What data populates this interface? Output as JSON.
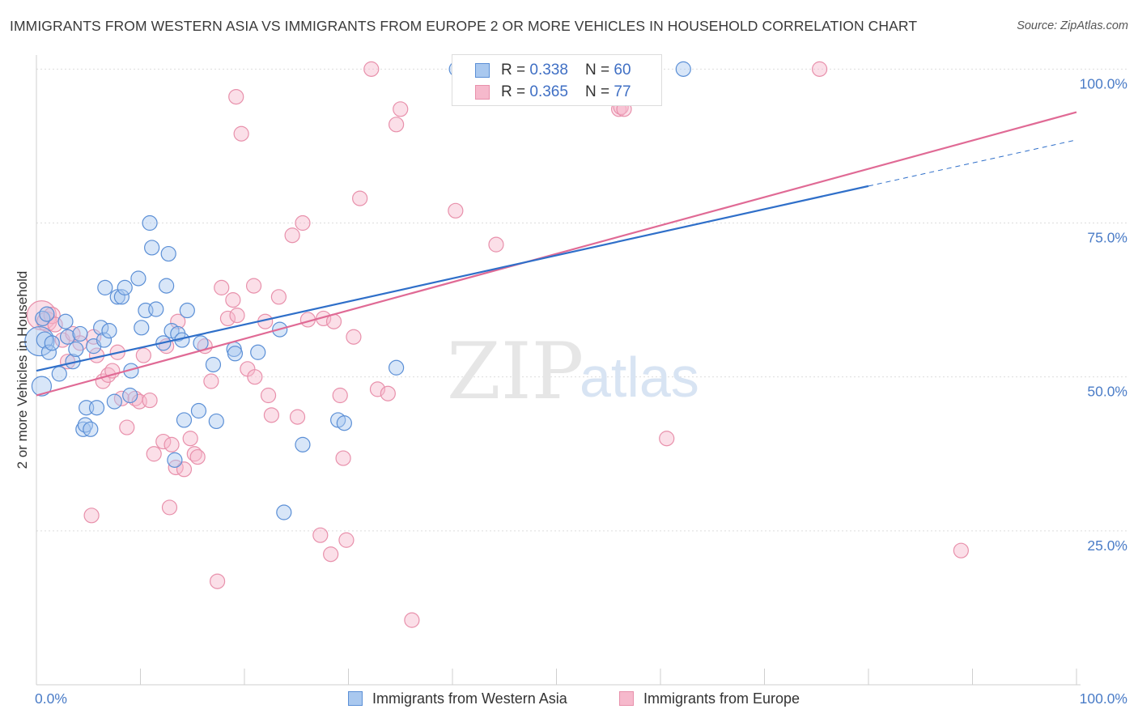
{
  "title": "IMMIGRANTS FROM WESTERN ASIA VS IMMIGRANTS FROM EUROPE 2 OR MORE VEHICLES IN HOUSEHOLD CORRELATION CHART",
  "source": "Source: ZipAtlas.com",
  "watermark": {
    "zip": "ZIP",
    "atlas": "atlas"
  },
  "colors": {
    "blue_fill": "#a9c8ef",
    "blue_stroke": "#5b8fd6",
    "blue_line": "#2f6fc9",
    "pink_fill": "#f6b9cc",
    "pink_stroke": "#e890ab",
    "pink_line": "#e06a95",
    "grid": "#dddddd",
    "tick_label": "#4a7cc7"
  },
  "legend": {
    "series": [
      {
        "r_label": "R = ",
        "r_value": "0.338",
        "n_label": "N = ",
        "n_value": "60"
      },
      {
        "r_label": "R = ",
        "r_value": "0.365",
        "n_label": "N = ",
        "n_value": "77"
      }
    ]
  },
  "chart_data": {
    "type": "scatter",
    "ylabel": "2 or more Vehicles in Household",
    "xlim": [
      0,
      100
    ],
    "ylim": [
      0,
      100
    ],
    "x_tick_labels": [
      "0.0%",
      "100.0%"
    ],
    "y_ticks": [
      25,
      50,
      75,
      100
    ],
    "y_tick_labels": [
      "25.0%",
      "50.0%",
      "75.0%",
      "100.0%"
    ],
    "grid": "horizontal dashed",
    "legend_placement": "bottom",
    "series": [
      {
        "name": "Immigrants from Western Asia",
        "color": "#a9c8ef",
        "trend": {
          "x0": 0,
          "y0": 51.0,
          "x1": 80,
          "y1": 81.0,
          "dash_to_x": 100,
          "dash_to_y": 88.5
        },
        "points": [
          [
            0.3,
            55.8,
            18
          ],
          [
            0.5,
            48.5,
            12
          ],
          [
            0.8,
            56.0,
            10
          ],
          [
            1.2,
            54.0,
            9
          ],
          [
            1.5,
            55.5,
            9
          ],
          [
            2.2,
            50.5,
            9
          ],
          [
            2.8,
            59.0,
            9
          ],
          [
            3.0,
            56.5,
            9
          ],
          [
            3.5,
            52.5,
            9
          ],
          [
            3.8,
            54.5,
            9
          ],
          [
            4.2,
            57.0,
            9
          ],
          [
            4.5,
            41.5,
            9
          ],
          [
            4.7,
            42.2,
            9
          ],
          [
            4.8,
            45.0,
            9
          ],
          [
            5.2,
            41.5,
            9
          ],
          [
            5.5,
            55.0,
            9
          ],
          [
            5.8,
            45.0,
            9
          ],
          [
            6.2,
            58.0,
            9
          ],
          [
            6.5,
            56.0,
            9
          ],
          [
            6.6,
            64.5,
            9
          ],
          [
            7.0,
            57.5,
            9
          ],
          [
            7.5,
            46.0,
            9
          ],
          [
            7.8,
            63.0,
            9
          ],
          [
            8.2,
            63.0,
            9
          ],
          [
            8.5,
            64.5,
            9
          ],
          [
            9.0,
            47.0,
            9
          ],
          [
            9.1,
            51.0,
            9
          ],
          [
            9.8,
            66.0,
            9
          ],
          [
            10.1,
            58.0,
            9
          ],
          [
            10.5,
            60.8,
            9
          ],
          [
            10.9,
            75.0,
            9
          ],
          [
            11.1,
            71.0,
            9
          ],
          [
            11.5,
            61.0,
            9
          ],
          [
            12.2,
            55.5,
            9
          ],
          [
            12.5,
            64.8,
            9
          ],
          [
            12.7,
            70.0,
            9
          ],
          [
            13.0,
            57.5,
            9
          ],
          [
            13.3,
            36.5,
            9
          ],
          [
            13.6,
            57.0,
            9
          ],
          [
            14.0,
            56.0,
            9
          ],
          [
            14.2,
            43.0,
            9
          ],
          [
            14.5,
            60.8,
            9
          ],
          [
            15.6,
            44.5,
            9
          ],
          [
            15.8,
            55.5,
            9
          ],
          [
            17.0,
            52.0,
            9
          ],
          [
            17.3,
            42.8,
            9
          ],
          [
            19.0,
            54.5,
            9
          ],
          [
            19.1,
            53.8,
            9
          ],
          [
            21.3,
            54.0,
            9
          ],
          [
            23.4,
            57.7,
            9
          ],
          [
            23.8,
            28.0,
            9
          ],
          [
            25.6,
            39.0,
            9
          ],
          [
            29.0,
            43.0,
            9
          ],
          [
            29.6,
            42.5,
            9
          ],
          [
            34.6,
            51.5,
            9
          ],
          [
            40.4,
            100.0,
            9
          ],
          [
            42.5,
            100.0,
            9
          ],
          [
            62.2,
            100.0,
            9
          ],
          [
            0.6,
            59.5,
            9
          ],
          [
            1.0,
            60.2,
            9
          ]
        ]
      },
      {
        "name": "Immigrants from Europe",
        "color": "#f6b9cc",
        "trend": {
          "x0": 0,
          "y0": 47.0,
          "x1": 100,
          "y1": 93.0
        },
        "points": [
          [
            0.5,
            60.0,
            18
          ],
          [
            1.0,
            59.0,
            12
          ],
          [
            1.5,
            60.0,
            10
          ],
          [
            2.5,
            56.0,
            9
          ],
          [
            3.0,
            52.5,
            9
          ],
          [
            3.5,
            57.0,
            9
          ],
          [
            4.2,
            55.5,
            9
          ],
          [
            5.3,
            27.5,
            9
          ],
          [
            5.5,
            56.5,
            9
          ],
          [
            5.8,
            53.5,
            9
          ],
          [
            6.4,
            49.3,
            9
          ],
          [
            6.9,
            50.3,
            9
          ],
          [
            7.3,
            51.0,
            9
          ],
          [
            7.8,
            54.0,
            9
          ],
          [
            8.2,
            46.5,
            9
          ],
          [
            8.7,
            41.8,
            9
          ],
          [
            9.5,
            46.5,
            9
          ],
          [
            9.9,
            46.0,
            9
          ],
          [
            10.3,
            53.5,
            9
          ],
          [
            10.9,
            46.2,
            9
          ],
          [
            11.3,
            37.5,
            9
          ],
          [
            12.2,
            39.5,
            9
          ],
          [
            12.5,
            55.0,
            9
          ],
          [
            12.8,
            28.8,
            9
          ],
          [
            13.0,
            39.0,
            9
          ],
          [
            13.4,
            35.3,
            9
          ],
          [
            13.6,
            59.0,
            9
          ],
          [
            14.2,
            35.0,
            9
          ],
          [
            14.8,
            40.0,
            9
          ],
          [
            15.2,
            37.5,
            9
          ],
          [
            15.5,
            37.0,
            9
          ],
          [
            16.2,
            55.0,
            9
          ],
          [
            16.8,
            49.3,
            9
          ],
          [
            17.4,
            16.8,
            9
          ],
          [
            17.8,
            64.5,
            9
          ],
          [
            18.4,
            59.5,
            9
          ],
          [
            18.9,
            62.5,
            9
          ],
          [
            19.2,
            95.5,
            9
          ],
          [
            19.3,
            60.0,
            9
          ],
          [
            19.7,
            89.5,
            9
          ],
          [
            20.3,
            51.3,
            9
          ],
          [
            20.9,
            64.8,
            9
          ],
          [
            21.0,
            50.0,
            9
          ],
          [
            22.0,
            59.0,
            9
          ],
          [
            22.3,
            47.0,
            9
          ],
          [
            22.6,
            43.8,
            9
          ],
          [
            23.3,
            63.0,
            9
          ],
          [
            24.6,
            73.0,
            9
          ],
          [
            25.1,
            43.5,
            9
          ],
          [
            25.6,
            75.0,
            9
          ],
          [
            26.1,
            59.3,
            9
          ],
          [
            27.3,
            24.3,
            9
          ],
          [
            27.6,
            59.5,
            9
          ],
          [
            28.3,
            21.2,
            9
          ],
          [
            28.6,
            59.0,
            9
          ],
          [
            29.2,
            47.0,
            9
          ],
          [
            29.5,
            36.8,
            9
          ],
          [
            29.8,
            23.5,
            9
          ],
          [
            30.5,
            56.5,
            9
          ],
          [
            31.1,
            79.0,
            9
          ],
          [
            32.2,
            100.0,
            9
          ],
          [
            32.8,
            48.0,
            9
          ],
          [
            33.8,
            47.3,
            9
          ],
          [
            34.6,
            91.0,
            9
          ],
          [
            35.0,
            93.5,
            9
          ],
          [
            36.1,
            10.5,
            9
          ],
          [
            40.3,
            77.0,
            9
          ],
          [
            44.2,
            71.5,
            9
          ],
          [
            47.5,
            100.0,
            9
          ],
          [
            47.8,
            100.0,
            9
          ],
          [
            56.0,
            93.5,
            9
          ],
          [
            56.2,
            93.8,
            9
          ],
          [
            56.5,
            93.5,
            9
          ],
          [
            60.6,
            40.0,
            9
          ],
          [
            75.3,
            100.0,
            9
          ],
          [
            88.9,
            21.8,
            9
          ],
          [
            1.8,
            58.5,
            9
          ]
        ]
      }
    ]
  }
}
